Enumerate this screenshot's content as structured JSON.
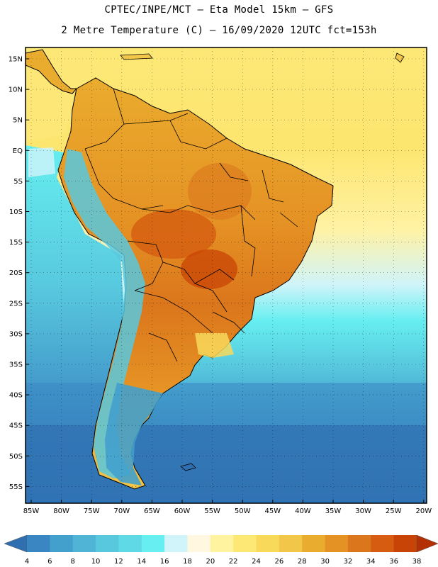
{
  "header": {
    "line1": "CPTEC/INPE/MCT —  Eta Model 15km — GFS",
    "line2": "2 Metre Temperature (C) — 16/09/2020 12UTC fct=153h"
  },
  "axes": {
    "lat_labels": [
      "15N",
      "10N",
      "5N",
      "EQ",
      "5S",
      "10S",
      "15S",
      "20S",
      "25S",
      "30S",
      "35S",
      "40S",
      "45S",
      "50S",
      "55S"
    ],
    "lon_labels": [
      "85W",
      "80W",
      "75W",
      "70W",
      "65W",
      "60W",
      "55W",
      "50W",
      "45W",
      "40W",
      "35W",
      "30W",
      "25W",
      "20W"
    ]
  },
  "colorbar": {
    "ticks": [
      "4",
      "6",
      "8",
      "10",
      "12",
      "14",
      "16",
      "18",
      "20",
      "22",
      "24",
      "26",
      "28",
      "30",
      "32",
      "34",
      "36",
      "38"
    ],
    "colors": [
      "#2f6fb0",
      "#3a86c2",
      "#43a0cc",
      "#4fb4d6",
      "#58c8de",
      "#5fd9e6",
      "#66eef0",
      "#d0f4fa",
      "#fff7e0",
      "#fff3a0",
      "#fde876",
      "#f8d95a",
      "#f2c648",
      "#eaac2e",
      "#e59224",
      "#db761c",
      "#d55c10",
      "#c84406",
      "#b33004"
    ]
  }
}
